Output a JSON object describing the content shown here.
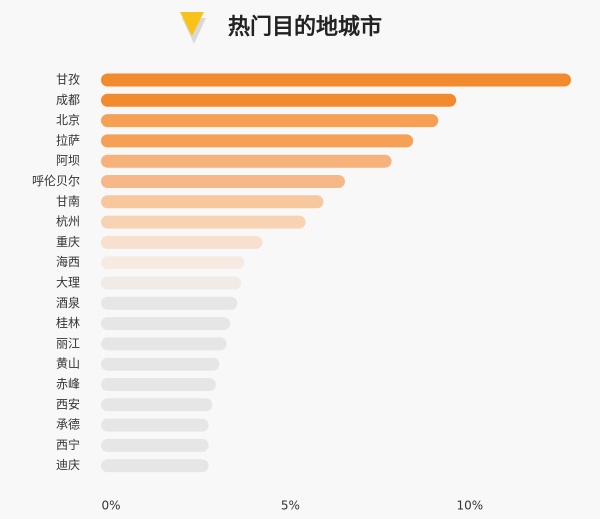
{
  "chart_data": {
    "type": "hbar",
    "title": "热门目的地城市",
    "categories": [
      "甘孜",
      "成都",
      "北京",
      "拉萨",
      "阿坝",
      "呼伦贝尔",
      "甘南",
      "杭州",
      "重庆",
      "海西",
      "大理",
      "酒泉",
      "桂林",
      "丽江",
      "黄山",
      "赤峰",
      "西安",
      "承德",
      "西宁",
      "迪庆"
    ],
    "values": [
      13.1,
      9.9,
      9.4,
      8.7,
      8.1,
      6.8,
      6.2,
      5.7,
      4.5,
      4.0,
      3.9,
      3.8,
      3.6,
      3.5,
      3.3,
      3.2,
      3.1,
      3.0,
      3.0,
      3.0
    ],
    "colors": [
      "#f28a2e",
      "#f28a2e",
      "#f5a055",
      "#f5a055",
      "#f6b27a",
      "#f6b888",
      "#f7c79e",
      "#f8d3b3",
      "#f7e0cf",
      "#f5ebe2",
      "#f0ebe6",
      "#e6e6e6",
      "#e6e6e6",
      "#e6e6e6",
      "#e6e6e6",
      "#e6e6e6",
      "#e6e6e6",
      "#e6e6e6",
      "#e6e6e6",
      "#e6e6e6"
    ],
    "xlim": [
      0,
      13.1
    ],
    "xticks": [
      {
        "value": 0,
        "label": "0%"
      },
      {
        "value": 5,
        "label": "5%"
      },
      {
        "value": 10,
        "label": "10%"
      }
    ]
  }
}
